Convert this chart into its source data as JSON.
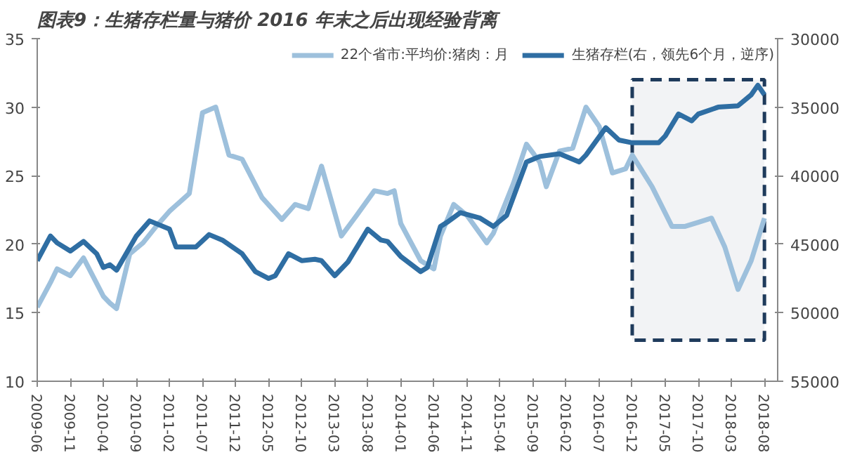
{
  "chart_data": {
    "type": "line",
    "title": "图表9：生猪存栏量与猪价 2016 年末之后出现经验背离",
    "xlim": [
      "2009-06",
      "2018-10"
    ],
    "xticks": [
      "2009-06",
      "2009-11",
      "2010-04",
      "2010-09",
      "2011-02",
      "2011-07",
      "2011-12",
      "2012-05",
      "2012-10",
      "2013-03",
      "2013-08",
      "2014-01",
      "2014-06",
      "2014-11",
      "2015-04",
      "2015-09",
      "2016-02",
      "2016-07",
      "2016-12",
      "2017-05",
      "2017-10",
      "2018-03",
      "2018-08"
    ],
    "ylim": [
      10,
      35
    ],
    "yticks": [
      10,
      15,
      20,
      25,
      30,
      35
    ],
    "y2lim": [
      55000,
      30000
    ],
    "y2ticks": [
      30000,
      35000,
      40000,
      45000,
      50000,
      55000
    ],
    "grid": false,
    "legend": "top",
    "line_style": "solid",
    "marker": "none",
    "bands": [
      {
        "axis": "x",
        "from": "2016-12",
        "to": "2018-08",
        "color": "#1f3b5c"
      }
    ],
    "series": [
      {
        "name": "22个省市:平均价:猪肉：月",
        "color": "#9dc0dc",
        "x": [
          "2009-06",
          "2009-08",
          "2009-09",
          "2009-11",
          "2010-01",
          "2010-04",
          "2010-05",
          "2010-06",
          "2010-08",
          "2010-10",
          "2010-12",
          "2011-02",
          "2011-05",
          "2011-07",
          "2011-09",
          "2011-11",
          "2012-01",
          "2012-04",
          "2012-07",
          "2012-09",
          "2012-11",
          "2013-01",
          "2013-04",
          "2013-06",
          "2013-09",
          "2013-11",
          "2013-12",
          "2014-01",
          "2014-04",
          "2014-06",
          "2014-07",
          "2014-09",
          "2014-11",
          "2015-02",
          "2015-03",
          "2015-06",
          "2015-08",
          "2015-10",
          "2015-11",
          "2016-01",
          "2016-03",
          "2016-05",
          "2016-07",
          "2016-09",
          "2016-11",
          "2016-12",
          "2017-03",
          "2017-06",
          "2017-08",
          "2017-10",
          "2017-12",
          "2018-02",
          "2018-04",
          "2018-06",
          "2018-08"
        ],
        "values": [
          15.4,
          17.2,
          18.2,
          17.7,
          19.0,
          16.2,
          15.7,
          15.3,
          19.3,
          20.1,
          21.3,
          22.4,
          23.7,
          29.6,
          30.0,
          26.5,
          26.2,
          23.4,
          21.8,
          22.9,
          22.6,
          25.7,
          20.6,
          21.9,
          23.9,
          23.7,
          23.9,
          21.5,
          18.8,
          18.2,
          20.6,
          22.9,
          22.1,
          20.1,
          20.8,
          24.4,
          27.3,
          26.0,
          24.2,
          26.8,
          27.0,
          30.0,
          28.6,
          25.2,
          25.5,
          26.5,
          24.2,
          21.3,
          21.3,
          21.6,
          21.9,
          19.8,
          16.7,
          18.8,
          21.9
        ]
      },
      {
        "name": "生猪存栏(右，领先6个月，逆序)",
        "color": "#2f6ea3",
        "axis": "y2",
        "x": [
          "2009-06",
          "2009-08",
          "2009-09",
          "2009-11",
          "2010-01",
          "2010-03",
          "2010-04",
          "2010-05",
          "2010-06",
          "2010-09",
          "2010-11",
          "2011-02",
          "2011-03",
          "2011-06",
          "2011-08",
          "2011-10",
          "2012-01",
          "2012-03",
          "2012-05",
          "2012-06",
          "2012-08",
          "2012-10",
          "2012-12",
          "2013-01",
          "2013-03",
          "2013-05",
          "2013-08",
          "2013-10",
          "2013-11",
          "2014-01",
          "2014-04",
          "2014-05",
          "2014-07",
          "2014-08",
          "2014-10",
          "2015-01",
          "2015-03",
          "2015-05",
          "2015-08",
          "2015-10",
          "2016-01",
          "2016-04",
          "2016-05",
          "2016-08",
          "2016-10",
          "2016-12",
          "2017-04",
          "2017-05",
          "2017-07",
          "2017-09",
          "2017-10",
          "2018-01",
          "2018-04",
          "2018-06",
          "2018-07",
          "2018-08"
        ],
        "values": [
          46200,
          44400,
          44900,
          45500,
          44800,
          45700,
          46700,
          46500,
          46900,
          44400,
          43300,
          43900,
          45200,
          45200,
          44300,
          44700,
          45700,
          47000,
          47500,
          47300,
          45700,
          46200,
          46100,
          46200,
          47300,
          46300,
          43900,
          44700,
          44800,
          45900,
          47000,
          46700,
          43700,
          43400,
          42700,
          43100,
          43700,
          42900,
          39000,
          38600,
          38400,
          39000,
          38500,
          36500,
          37400,
          37600,
          37600,
          37100,
          35500,
          36000,
          35500,
          35000,
          34900,
          34100,
          33400,
          34100
        ]
      }
    ]
  }
}
